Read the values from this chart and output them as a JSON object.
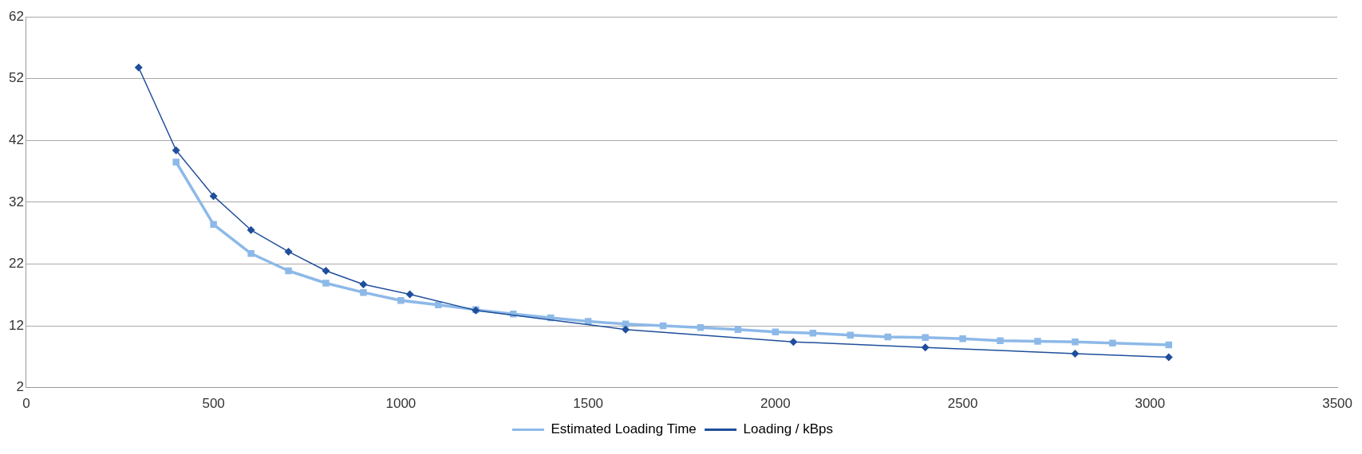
{
  "chart_data": {
    "type": "line",
    "xlim": [
      0,
      3500
    ],
    "xticks": [
      0,
      500,
      1000,
      1500,
      2000,
      2500,
      3000,
      3500
    ],
    "ylim": [
      2,
      62
    ],
    "yticks": [
      2,
      12,
      22,
      32,
      42,
      52,
      62
    ],
    "grid": "y",
    "legend": "bottom",
    "series": [
      {
        "name": "Estimated Loading Time",
        "color": "#8db9e8",
        "marker": "square",
        "x": [
          400,
          500,
          600,
          700,
          800,
          900,
          1000,
          1100,
          1200,
          1300,
          1400,
          1500,
          1600,
          1700,
          1800,
          1900,
          2000,
          2100,
          2200,
          2300,
          2400,
          2500,
          2600,
          2700,
          2800,
          2900,
          3050
        ],
        "values": [
          38.5,
          28.4,
          23.7,
          20.9,
          18.9,
          17.4,
          16.1,
          15.4,
          14.6,
          13.9,
          13.3,
          12.7,
          12.3,
          12.0,
          11.7,
          11.4,
          11.0,
          10.8,
          10.5,
          10.2,
          10.1,
          9.9,
          9.6,
          9.5,
          9.4,
          9.2,
          8.9
        ]
      },
      {
        "name": "Loading / kBps",
        "color": "#1f4e9c",
        "marker": "diamond",
        "x": [
          300,
          400,
          500,
          600,
          700,
          800,
          900,
          1024,
          1200,
          1600,
          2048,
          2400,
          2800,
          3050
        ],
        "values": [
          53.8,
          40.4,
          33.0,
          27.5,
          24.0,
          20.9,
          18.7,
          17.1,
          14.5,
          11.4,
          9.4,
          8.5,
          7.5,
          6.9
        ]
      }
    ]
  }
}
